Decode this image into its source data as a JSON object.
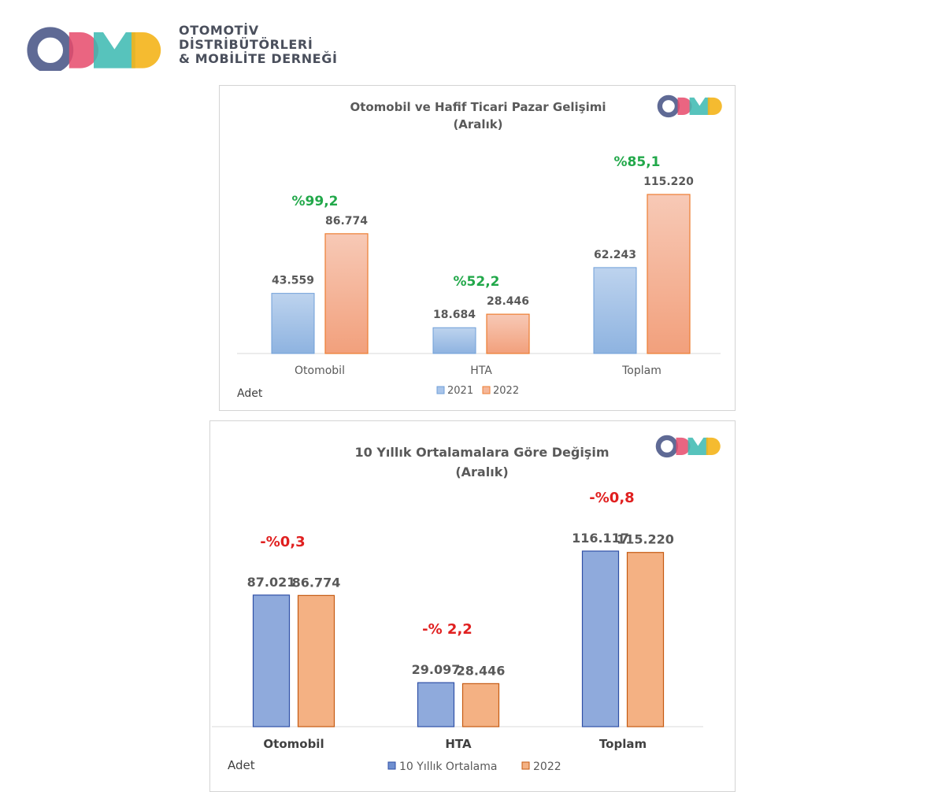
{
  "brand": {
    "line1": "OTOMOTİV",
    "line2": "DİSTRİBÜTÖRLERİ",
    "line3": "& MOBİLİTE DERNEĞİ",
    "colors": [
      "#4e5a8a",
      "#e64a6b",
      "#3ab8b0",
      "#f4b41a"
    ]
  },
  "colors": {
    "blue_light_top": "#bdd3ee",
    "blue_light_bottom": "#8eb3e0",
    "blue_light_stroke": "#6f9fd8",
    "orange_light_top": "#f7c9b6",
    "orange_light_bottom": "#f2a07c",
    "orange_stroke": "#ed7d31",
    "blue_solid": "#8faadc",
    "blue_solid_stroke": "#2f4fa6",
    "orange_solid": "#f4b183",
    "orange_solid_stroke": "#c55a11",
    "pct_green": "#22a84a",
    "pct_red": "#e02020"
  },
  "chart_data": [
    {
      "type": "bar",
      "title": "Otomobil ve Hafif Ticari Pazar Gelişimi",
      "subtitle": "(Aralık)",
      "categories": [
        "Otomobil",
        "HTA",
        "Toplam"
      ],
      "series": [
        {
          "name": "2021",
          "values": [
            43559,
            18684,
            62243
          ],
          "labels": [
            "43.559",
            "18.684",
            "62.243"
          ]
        },
        {
          "name": "2022",
          "values": [
            86774,
            28446,
            115220
          ],
          "labels": [
            "86.774",
            "28.446",
            "115.220"
          ]
        }
      ],
      "changes": [
        "%99,2",
        "%52,2",
        "%85,1"
      ],
      "unit_note": "Adet",
      "ylim": [
        0,
        115220
      ],
      "legend": "bottom",
      "grid": false
    },
    {
      "type": "bar",
      "title": "10 Yıllık Ortalamalara Göre Değişim",
      "subtitle": "(Aralık)",
      "categories": [
        "Otomobil",
        "HTA",
        "Toplam"
      ],
      "series": [
        {
          "name": "10 Yıllık Ortalama",
          "values": [
            87021,
            29097,
            116117
          ],
          "labels": [
            "87.021",
            "29.097",
            "116.117"
          ]
        },
        {
          "name": "2022",
          "values": [
            86774,
            28446,
            115220
          ],
          "labels": [
            "86.774",
            "28.446",
            "115.220"
          ]
        }
      ],
      "changes": [
        "-%0,3",
        "-% 2,2",
        "-%0,8"
      ],
      "unit_note": "Adet",
      "ylim": [
        0,
        116117
      ],
      "legend": "bottom",
      "grid": false
    }
  ]
}
